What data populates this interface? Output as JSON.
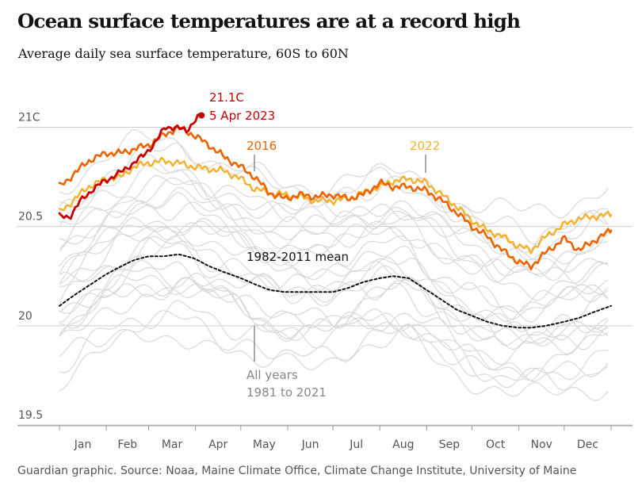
{
  "title": "Ocean surface temperatures are at a record high",
  "subtitle": "Average daily sea surface temperature, 60S to 60N",
  "source": "Guardian graphic. Source: Noaa, Maine Climate Office, Climate Change Institute, University of Maine",
  "colors": {
    "y2023": "#c70000",
    "y2016": "#ed6300",
    "y2022": "#f5b12d",
    "mean": "#121212",
    "all_years": "#d9d9d9",
    "grid": "#cccccc",
    "axis_text": "#555555"
  },
  "annotations": {
    "record_value": "21.1C",
    "record_date": "5 Apr 2023",
    "label_2016": "2016",
    "label_2022": "2022",
    "label_mean": "1982-2011 mean",
    "label_all_line1": "All years",
    "label_all_line2": "1981 to 2021"
  },
  "chart_data": {
    "type": "line",
    "xlabel": "",
    "ylabel": "",
    "x_unit": "day of year",
    "xlim": [
      1,
      366
    ],
    "ylim": [
      19.5,
      21.05
    ],
    "y_ticks": [
      19.5,
      20,
      20.5,
      21
    ],
    "y_tick_labels": [
      "19.5",
      "20",
      "20.5",
      "21C"
    ],
    "x_tick_labels": [
      "Jan",
      "Feb",
      "Mar",
      "Apr",
      "May",
      "Jun",
      "Jul",
      "Aug",
      "Sep",
      "Oct",
      "Nov",
      "Dec"
    ],
    "grid": "horizontal",
    "series": [
      {
        "name": "2023",
        "x": [
          1,
          8,
          15,
          22,
          29,
          36,
          43,
          50,
          57,
          64,
          71,
          78,
          85,
          92,
          95
        ],
        "y": [
          20.55,
          20.55,
          20.63,
          20.68,
          20.72,
          20.75,
          20.78,
          20.82,
          20.86,
          20.92,
          21.0,
          21.0,
          20.98,
          21.05,
          21.06
        ]
      },
      {
        "name": "2016",
        "x": [
          1,
          10,
          20,
          32,
          42,
          50,
          60,
          70,
          80,
          90,
          100,
          110,
          121,
          130,
          140,
          150,
          160,
          170,
          182,
          192,
          202,
          213,
          222,
          232,
          244,
          254,
          264,
          274,
          284,
          294,
          305,
          313,
          323,
          335,
          345,
          355,
          366
        ],
        "y": [
          20.7,
          20.76,
          20.83,
          20.87,
          20.87,
          20.89,
          20.91,
          20.96,
          21.0,
          20.96,
          20.91,
          20.85,
          20.8,
          20.75,
          20.67,
          20.64,
          20.66,
          20.65,
          20.66,
          20.64,
          20.66,
          20.72,
          20.7,
          20.7,
          20.68,
          20.63,
          20.57,
          20.5,
          20.45,
          20.38,
          20.32,
          20.3,
          20.37,
          20.44,
          20.38,
          20.43,
          20.48
        ]
      },
      {
        "name": "2022",
        "x": [
          1,
          10,
          20,
          32,
          42,
          50,
          60,
          70,
          80,
          90,
          100,
          110,
          121,
          130,
          140,
          150,
          160,
          170,
          182,
          192,
          202,
          213,
          222,
          232,
          244,
          254,
          264,
          274,
          284,
          294,
          305,
          313,
          323,
          335,
          345,
          355,
          366
        ],
        "y": [
          20.57,
          20.63,
          20.7,
          20.74,
          20.75,
          20.8,
          20.82,
          20.83,
          20.82,
          20.8,
          20.79,
          20.78,
          20.74,
          20.69,
          20.67,
          20.66,
          20.65,
          20.63,
          20.63,
          20.64,
          20.67,
          20.7,
          20.73,
          20.74,
          20.72,
          20.66,
          20.6,
          20.53,
          20.48,
          20.45,
          20.4,
          20.38,
          20.45,
          20.51,
          20.54,
          20.55,
          20.56
        ]
      },
      {
        "name": "1982-2011 mean",
        "x": [
          1,
          10,
          20,
          32,
          42,
          50,
          60,
          70,
          80,
          90,
          100,
          110,
          121,
          130,
          140,
          150,
          160,
          170,
          182,
          192,
          202,
          213,
          222,
          232,
          244,
          254,
          264,
          274,
          284,
          294,
          305,
          313,
          323,
          335,
          345,
          355,
          366
        ],
        "y": [
          20.1,
          20.15,
          20.2,
          20.26,
          20.3,
          20.33,
          20.35,
          20.35,
          20.36,
          20.34,
          20.3,
          20.27,
          20.24,
          20.21,
          20.18,
          20.17,
          20.17,
          20.17,
          20.17,
          20.19,
          20.22,
          20.24,
          20.25,
          20.24,
          20.18,
          20.13,
          20.08,
          20.05,
          20.02,
          20.0,
          19.99,
          19.99,
          20.0,
          20.02,
          20.04,
          20.07,
          20.1
        ]
      }
    ],
    "background_series": [
      {
        "base": 0.0
      },
      {
        "base": 0.05
      },
      {
        "base": -0.05
      },
      {
        "base": 0.1
      },
      {
        "base": -0.1
      },
      {
        "base": 0.15
      },
      {
        "base": -0.15
      },
      {
        "base": 0.2
      },
      {
        "base": -0.2
      },
      {
        "base": 0.25
      },
      {
        "base": -0.25
      },
      {
        "base": 0.3
      },
      {
        "base": -0.3
      },
      {
        "base": 0.35
      },
      {
        "base": 0.4
      },
      {
        "base": 0.45
      },
      {
        "base": 0.5
      },
      {
        "base": 0.55
      },
      {
        "base": -0.35
      },
      {
        "base": 0.12
      },
      {
        "base": -0.08
      },
      {
        "base": 0.28
      },
      {
        "base": -0.18
      },
      {
        "base": 0.33
      },
      {
        "base": 0.02
      }
    ]
  }
}
